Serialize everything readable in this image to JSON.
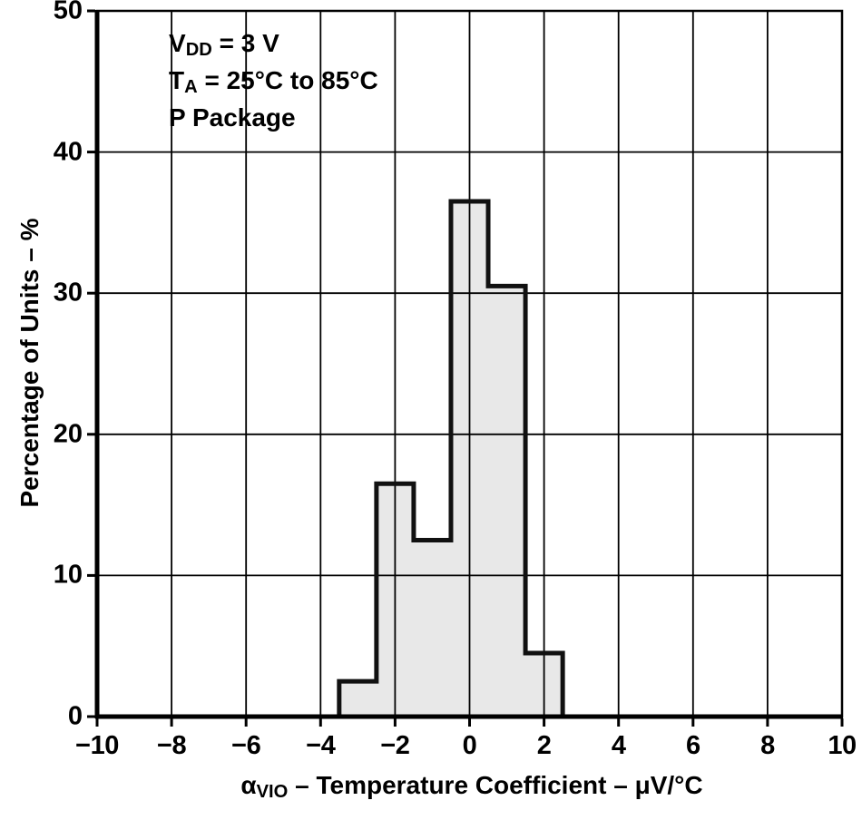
{
  "chart_data": {
    "type": "histogram",
    "title": "",
    "xlabel": "αVIO – Temperature Coefficient – μV/°C",
    "xlabel_parts": {
      "symbol": "α",
      "symbol_sub": "VIO",
      "rest": " – Temperature Coefficient – μV/°C"
    },
    "ylabel": "Percentage of Units – %",
    "xlim": [
      -10,
      10
    ],
    "ylim": [
      0,
      50
    ],
    "x_ticks": [
      -10,
      -8,
      -6,
      -4,
      -2,
      0,
      2,
      4,
      6,
      8,
      10
    ],
    "x_tick_labels": [
      "−10",
      "−8",
      "−6",
      "−4",
      "−2",
      "0",
      "2",
      "4",
      "6",
      "8",
      "10"
    ],
    "y_ticks": [
      0,
      10,
      20,
      30,
      40,
      50
    ],
    "y_tick_labels": [
      "0",
      "10",
      "20",
      "30",
      "40",
      "50"
    ],
    "grid": true,
    "legend": false,
    "bin_width": 1,
    "bin_centers": [
      -3,
      -2,
      -1,
      0,
      1,
      2
    ],
    "bin_edges": [
      -3.5,
      -2.5,
      -1.5,
      -0.5,
      0.5,
      1.5,
      2.5
    ],
    "values": [
      2.5,
      16.5,
      12.5,
      36.5,
      30.5,
      4.5
    ],
    "bar_fill": "#e8e8e8",
    "bar_stroke": "#111111",
    "grid_color": "#000000",
    "annotation": {
      "line1": {
        "pre": "V",
        "sub": "DD",
        "post": " = 3 V"
      },
      "line2": {
        "pre": "T",
        "sub": "A",
        "post": " = 25°C to 85°C"
      },
      "line3": "P Package"
    }
  }
}
